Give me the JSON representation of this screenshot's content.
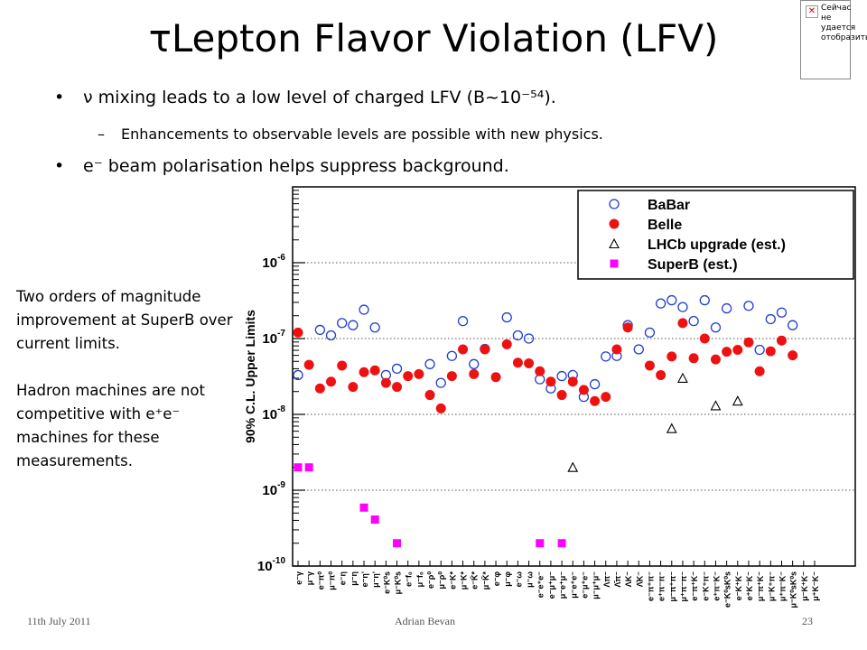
{
  "slide": {
    "title": "τLepton Flavor Violation (LFV)",
    "bullets": [
      "ν mixing leads to a low level of charged LFV (B~10⁻⁵⁴).",
      "e⁻ beam polarisation helps suppress background."
    ],
    "sub_bullet": "Enhancements to observable levels are possible with new physics.",
    "note_paragraphs": [
      "Two orders of magnitude improvement at SuperB over current limits.",
      "Hadron machines are not competitive with e⁺e⁻ machines for these measurements."
    ],
    "footer": {
      "date": "11th July 2011",
      "author": "Adrian Bevan",
      "page": "23"
    },
    "widget": {
      "text": "Сейчас не удается отобразить"
    }
  },
  "chart_data": {
    "type": "scatter",
    "ylabel": "90% C.L. Upper Limits",
    "yscale": "log",
    "ylim": [
      1e-10,
      1e-05
    ],
    "y_ticks": [
      {
        "value": 1e-10,
        "label": "10",
        "exp": "-10"
      },
      {
        "value": 1e-09,
        "label": "10",
        "exp": "-9"
      },
      {
        "value": 1e-08,
        "label": "10",
        "exp": "-8"
      },
      {
        "value": 1e-07,
        "label": "10",
        "exp": "-7"
      },
      {
        "value": 1e-06,
        "label": "10",
        "exp": "-6"
      }
    ],
    "grid": "horizontal dotted at decades",
    "legend_position": "top-right",
    "colors": {
      "babar": "#1f3fd0",
      "belle": "#ee1111",
      "lhcb": "#000000",
      "superb": "#ff00ff"
    },
    "categories": [
      "e⁻γ",
      "μ⁻γ",
      "e⁻π⁰",
      "μ⁻π⁰",
      "e⁻η",
      "μ⁻η",
      "e⁻η'",
      "μ⁻η'",
      "e⁻K⁰s",
      "μ⁻K⁰s",
      "e⁻f₀",
      "μ⁻f₀",
      "e⁻ρ⁰",
      "μ⁻ρ⁰",
      "e⁻K*",
      "μ⁻K*",
      "e⁻K̄*",
      "μ⁻K̄*",
      "e⁻φ",
      "μ⁻φ",
      "e⁻ω",
      "μ⁻ω",
      "e⁻e⁺e⁻",
      "e⁻μ⁺μ⁻",
      "μ⁻e⁺μ⁻",
      "μ⁻e⁺e⁻",
      "e⁻μ⁺e⁻",
      "μ⁻μ⁺μ⁻",
      "Λπ⁻",
      "Λ̄π⁻",
      "ΛK⁻",
      "Λ̄K⁻",
      "e⁻π⁺π⁻",
      "e⁺π⁻π⁻",
      "μ⁻π⁺π⁻",
      "μ⁺π⁻π⁻",
      "e⁻π⁺K⁻",
      "e⁻K⁺π⁻",
      "e⁺π⁻K⁻",
      "e⁻K⁰sK⁰s",
      "e⁻K⁺K⁻",
      "e⁺K⁻K⁻",
      "μ⁻π⁺K⁻",
      "μ⁻K⁺π⁻",
      "μ⁺π⁻K⁻",
      "μ⁻K⁰sK⁰s",
      "μ⁻K⁺K⁻",
      "μ⁺K⁻K⁻"
    ],
    "series": [
      {
        "name": "BaBar",
        "marker": "open-circle",
        "points": [
          [
            0,
            3.3e-08
          ],
          [
            2,
            1.3e-07
          ],
          [
            3,
            1.1e-07
          ],
          [
            4,
            1.6e-07
          ],
          [
            5,
            1.5e-07
          ],
          [
            6,
            2.4e-07
          ],
          [
            7,
            1.4e-07
          ],
          [
            8,
            3.3e-08
          ],
          [
            9,
            4e-08
          ],
          [
            12,
            4.6e-08
          ],
          [
            13,
            2.6e-08
          ],
          [
            14,
            5.9e-08
          ],
          [
            15,
            1.7e-07
          ],
          [
            16,
            4.6e-08
          ],
          [
            17,
            7.3e-08
          ],
          [
            19,
            1.9e-07
          ],
          [
            20,
            1.1e-07
          ],
          [
            21,
            1e-07
          ],
          [
            22,
            2.9e-08
          ],
          [
            23,
            2.2e-08
          ],
          [
            24,
            3.2e-08
          ],
          [
            25,
            3.3e-08
          ],
          [
            26,
            1.7e-08
          ],
          [
            27,
            2.5e-08
          ],
          [
            28,
            5.8e-08
          ],
          [
            29,
            5.9e-08
          ],
          [
            30,
            1.5e-07
          ],
          [
            31,
            7.2e-08
          ],
          [
            32,
            1.2e-07
          ],
          [
            33,
            2.9e-07
          ],
          [
            34,
            3.2e-07
          ],
          [
            35,
            2.6e-07
          ],
          [
            36,
            1.7e-07
          ],
          [
            37,
            3.2e-07
          ],
          [
            38,
            1.4e-07
          ],
          [
            39,
            2.5e-07
          ],
          [
            41,
            2.7e-07
          ],
          [
            42,
            7.1e-08
          ],
          [
            43,
            1.8e-07
          ],
          [
            44,
            2.2e-07
          ],
          [
            45,
            1.5e-07
          ]
        ]
      },
      {
        "name": "Belle",
        "marker": "filled-circle",
        "points": [
          [
            0,
            1.2e-07
          ],
          [
            1,
            4.5e-08
          ],
          [
            2,
            2.2e-08
          ],
          [
            3,
            2.7e-08
          ],
          [
            4,
            4.4e-08
          ],
          [
            5,
            2.3e-08
          ],
          [
            6,
            3.6e-08
          ],
          [
            7,
            3.8e-08
          ],
          [
            8,
            2.6e-08
          ],
          [
            9,
            2.3e-08
          ],
          [
            10,
            3.2e-08
          ],
          [
            11,
            3.4e-08
          ],
          [
            12,
            1.8e-08
          ],
          [
            13,
            1.2e-08
          ],
          [
            14,
            3.2e-08
          ],
          [
            15,
            7.2e-08
          ],
          [
            16,
            3.4e-08
          ],
          [
            17,
            7.2e-08
          ],
          [
            18,
            3.1e-08
          ],
          [
            19,
            8.4e-08
          ],
          [
            20,
            4.8e-08
          ],
          [
            21,
            4.7e-08
          ],
          [
            22,
            3.7e-08
          ],
          [
            23,
            2.7e-08
          ],
          [
            24,
            1.8e-08
          ],
          [
            25,
            2.7e-08
          ],
          [
            26,
            2.1e-08
          ],
          [
            27,
            1.5e-08
          ],
          [
            28,
            1.7e-08
          ],
          [
            29,
            7.2e-08
          ],
          [
            30,
            1.4e-07
          ],
          [
            32,
            4.4e-08
          ],
          [
            33,
            3.3e-08
          ],
          [
            34,
            5.8e-08
          ],
          [
            35,
            1.6e-07
          ],
          [
            36,
            5.5e-08
          ],
          [
            37,
            1e-07
          ],
          [
            38,
            5.3e-08
          ],
          [
            39,
            6.7e-08
          ],
          [
            40,
            7.1e-08
          ],
          [
            41,
            8.9e-08
          ],
          [
            42,
            3.7e-08
          ],
          [
            43,
            6.8e-08
          ],
          [
            44,
            9.4e-08
          ],
          [
            45,
            6e-08
          ]
        ]
      },
      {
        "name": "LHCb upgrade (est.)",
        "marker": "open-triangle",
        "points": [
          [
            25,
            2e-09
          ],
          [
            34,
            6.5e-09
          ],
          [
            35,
            3e-08
          ],
          [
            38,
            1.3e-08
          ],
          [
            40,
            1.5e-08
          ]
        ]
      },
      {
        "name": "SuperB (est.)",
        "marker": "filled-square",
        "points": [
          [
            0,
            2e-09
          ],
          [
            1,
            2e-09
          ],
          [
            6,
            5.9e-10
          ],
          [
            7,
            4.1e-10
          ],
          [
            9,
            2e-10
          ],
          [
            22,
            2e-10
          ],
          [
            24,
            2e-10
          ]
        ]
      }
    ]
  }
}
